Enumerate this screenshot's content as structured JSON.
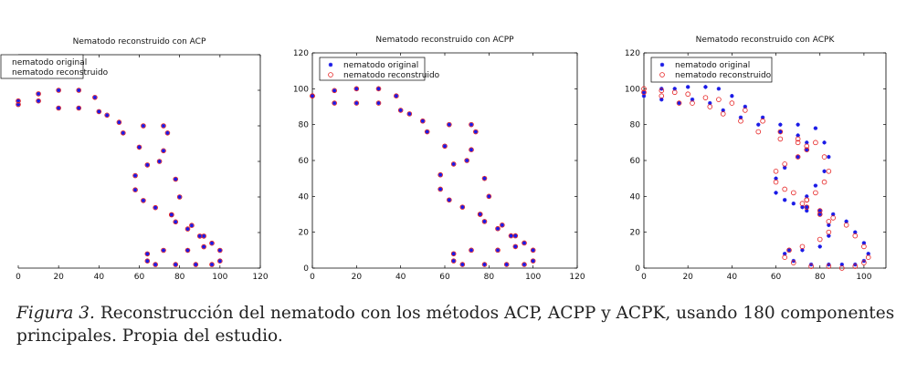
{
  "caption": {
    "label": "Figura 3.",
    "text": "Reconstrucción del nematodo con los métodos ACP, ACPP y ACPK, usando 180 componentes principales. Propia del estudio."
  },
  "colors": {
    "original": "#1a1ae6",
    "reconstructed": "#e62020"
  },
  "chart_data": [
    {
      "type": "scatter",
      "title": "Nematodo reconstruido con ACP",
      "xlim": [
        0,
        120
      ],
      "ylim": [
        0,
        120
      ],
      "xticks": [
        "0",
        "20",
        "40",
        "60",
        "80",
        "100",
        "120"
      ],
      "yticks": [],
      "grid": false,
      "legend_position": "top-left",
      "series": [
        {
          "name": "nematodo original",
          "marker": "star",
          "x": [
            0,
            10,
            20,
            30,
            38,
            44,
            52,
            60,
            70,
            78,
            80,
            76,
            78,
            84,
            90,
            96,
            100,
            100,
            96,
            88,
            78,
            68,
            64,
            64,
            72,
            84,
            92,
            92,
            86,
            76,
            68,
            62,
            58,
            58,
            64,
            72,
            74,
            72,
            62,
            50,
            40,
            30,
            20,
            10,
            0
          ],
          "y": [
            92,
            98,
            100,
            100,
            96,
            86,
            76,
            68,
            60,
            50,
            40,
            30,
            26,
            22,
            18,
            14,
            10,
            4,
            2,
            2,
            2,
            2,
            4,
            8,
            10,
            10,
            12,
            18,
            24,
            30,
            34,
            38,
            44,
            52,
            58,
            66,
            76,
            80,
            80,
            82,
            88,
            90,
            90,
            94,
            94
          ]
        },
        {
          "name": "nematodo reconstruido",
          "marker": "circle",
          "x": [
            0,
            10,
            20,
            30,
            38,
            44,
            52,
            60,
            70,
            78,
            80,
            76,
            78,
            84,
            90,
            96,
            100,
            100,
            96,
            88,
            78,
            68,
            64,
            64,
            72,
            84,
            92,
            92,
            86,
            76,
            68,
            62,
            58,
            58,
            64,
            72,
            74,
            72,
            62,
            50,
            40,
            30,
            20,
            10,
            0
          ],
          "y": [
            92,
            98,
            100,
            100,
            96,
            86,
            76,
            68,
            60,
            50,
            40,
            30,
            26,
            22,
            18,
            14,
            10,
            4,
            2,
            2,
            2,
            2,
            4,
            8,
            10,
            10,
            12,
            18,
            24,
            30,
            34,
            38,
            44,
            52,
            58,
            66,
            76,
            80,
            80,
            82,
            88,
            90,
            90,
            94,
            94
          ]
        }
      ]
    },
    {
      "type": "scatter",
      "title": "Nematodo reconstruido con ACPP",
      "xlim": [
        0,
        120
      ],
      "ylim": [
        0,
        120
      ],
      "xticks": [
        "0",
        "20",
        "40",
        "60",
        "80",
        "100",
        "120"
      ],
      "yticks": [
        "0",
        "20",
        "40",
        "60",
        "80",
        "100",
        "120"
      ],
      "grid": false,
      "legend_position": "top-left",
      "series": [
        {
          "name": "nematodo original",
          "marker": "star",
          "x": [
            0,
            10,
            20,
            30,
            38,
            44,
            52,
            60,
            70,
            78,
            80,
            76,
            78,
            84,
            90,
            96,
            100,
            100,
            96,
            88,
            78,
            68,
            64,
            64,
            72,
            84,
            92,
            92,
            86,
            76,
            68,
            62,
            58,
            58,
            64,
            72,
            74,
            72,
            62,
            50,
            40,
            30,
            20,
            10,
            0
          ],
          "y": [
            96,
            99,
            100,
            100,
            96,
            86,
            76,
            68,
            60,
            50,
            40,
            30,
            26,
            22,
            18,
            14,
            10,
            4,
            2,
            2,
            2,
            2,
            4,
            8,
            10,
            10,
            12,
            18,
            24,
            30,
            34,
            38,
            44,
            52,
            58,
            66,
            76,
            80,
            80,
            82,
            88,
            92,
            92,
            92,
            96
          ]
        },
        {
          "name": "nematodo reconstruido",
          "marker": "circle",
          "x": [
            0,
            10,
            20,
            30,
            38,
            44,
            52,
            60,
            70,
            78,
            80,
            76,
            78,
            84,
            90,
            96,
            100,
            100,
            96,
            88,
            78,
            68,
            64,
            64,
            72,
            84,
            92,
            92,
            86,
            76,
            68,
            62,
            58,
            58,
            64,
            72,
            74,
            72,
            62,
            50,
            40,
            30,
            20,
            10,
            0
          ],
          "y": [
            96,
            99,
            100,
            100,
            96,
            86,
            76,
            68,
            60,
            50,
            40,
            30,
            26,
            22,
            18,
            14,
            10,
            4,
            2,
            2,
            2,
            2,
            4,
            8,
            10,
            10,
            12,
            18,
            24,
            30,
            34,
            38,
            44,
            52,
            58,
            66,
            76,
            80,
            80,
            82,
            88,
            92,
            92,
            92,
            96
          ]
        }
      ]
    },
    {
      "type": "scatter",
      "title": "Nematodo reconstruido con ACPK",
      "xlim": [
        0,
        110
      ],
      "ylim": [
        0,
        120
      ],
      "xticks": [
        "0",
        "20",
        "40",
        "60",
        "80",
        "100"
      ],
      "yticks": [
        "0",
        "20",
        "40",
        "60",
        "80",
        "100",
        "120"
      ],
      "grid": false,
      "legend_position": "top-left",
      "series": [
        {
          "name": "nematodo original",
          "marker": "star",
          "x": [
            0,
            8,
            14,
            20,
            28,
            34,
            40,
            46,
            54,
            62,
            70,
            78,
            82,
            84,
            82,
            78,
            74,
            72,
            74,
            80,
            86,
            92,
            96,
            100,
            102,
            100,
            96,
            90,
            84,
            76,
            68,
            64,
            66,
            72,
            80,
            84,
            84,
            80,
            74,
            68,
            64,
            60,
            60,
            64,
            70,
            74,
            74,
            70,
            62,
            52,
            44,
            36,
            30,
            22,
            16,
            8,
            0
          ],
          "y": [
            98,
            100,
            100,
            101,
            101,
            100,
            96,
            90,
            84,
            80,
            80,
            78,
            70,
            62,
            54,
            46,
            40,
            34,
            32,
            32,
            30,
            26,
            20,
            14,
            8,
            4,
            2,
            2,
            2,
            2,
            4,
            8,
            10,
            10,
            12,
            18,
            24,
            30,
            34,
            36,
            38,
            42,
            50,
            56,
            62,
            66,
            70,
            74,
            76,
            80,
            84,
            88,
            92,
            94,
            92,
            94,
            96
          ]
        },
        {
          "name": "nematodo reconstruido",
          "marker": "circle",
          "x": [
            0,
            8,
            14,
            20,
            28,
            34,
            40,
            46,
            54,
            62,
            70,
            78,
            82,
            84,
            82,
            78,
            74,
            72,
            74,
            80,
            86,
            92,
            96,
            100,
            102,
            100,
            96,
            90,
            84,
            76,
            68,
            64,
            66,
            72,
            80,
            84,
            84,
            80,
            74,
            68,
            64,
            60,
            60,
            64,
            70,
            74,
            74,
            70,
            62,
            52,
            44,
            36,
            30,
            22,
            16,
            8,
            0
          ],
          "y": [
            100,
            99,
            98,
            97,
            95,
            94,
            92,
            88,
            82,
            76,
            72,
            70,
            62,
            54,
            48,
            42,
            38,
            36,
            34,
            30,
            28,
            24,
            18,
            12,
            6,
            3,
            1,
            0,
            1,
            1,
            3,
            6,
            10,
            12,
            16,
            20,
            26,
            32,
            38,
            42,
            44,
            48,
            54,
            58,
            62,
            66,
            68,
            70,
            72,
            76,
            82,
            86,
            90,
            92,
            92,
            96,
            98
          ]
        }
      ]
    }
  ]
}
